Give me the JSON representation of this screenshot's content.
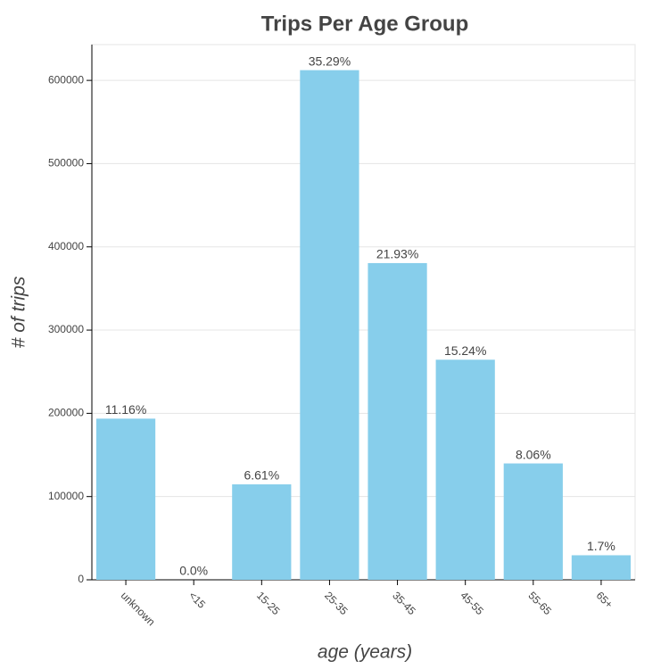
{
  "chart_data": {
    "type": "bar",
    "title": "Trips Per Age Group",
    "x_label": "age (years)",
    "y_label": "# of trips",
    "categories": [
      "unknown",
      "<15",
      "15-25",
      "25-35",
      "35-45",
      "45-55",
      "55-65",
      "65+"
    ],
    "values": [
      193600,
      0,
      114700,
      612300,
      380500,
      264400,
      139800,
      29500
    ],
    "value_labels": [
      "11.16%",
      "0.0%",
      "6.61%",
      "35.29%",
      "21.93%",
      "15.24%",
      "8.06%",
      "1.7%"
    ],
    "color": "#87ceeb",
    "ylim": [
      0,
      643000
    ],
    "yticks": [
      0,
      100000,
      200000,
      300000,
      400000,
      500000,
      600000
    ],
    "grid": true
  }
}
